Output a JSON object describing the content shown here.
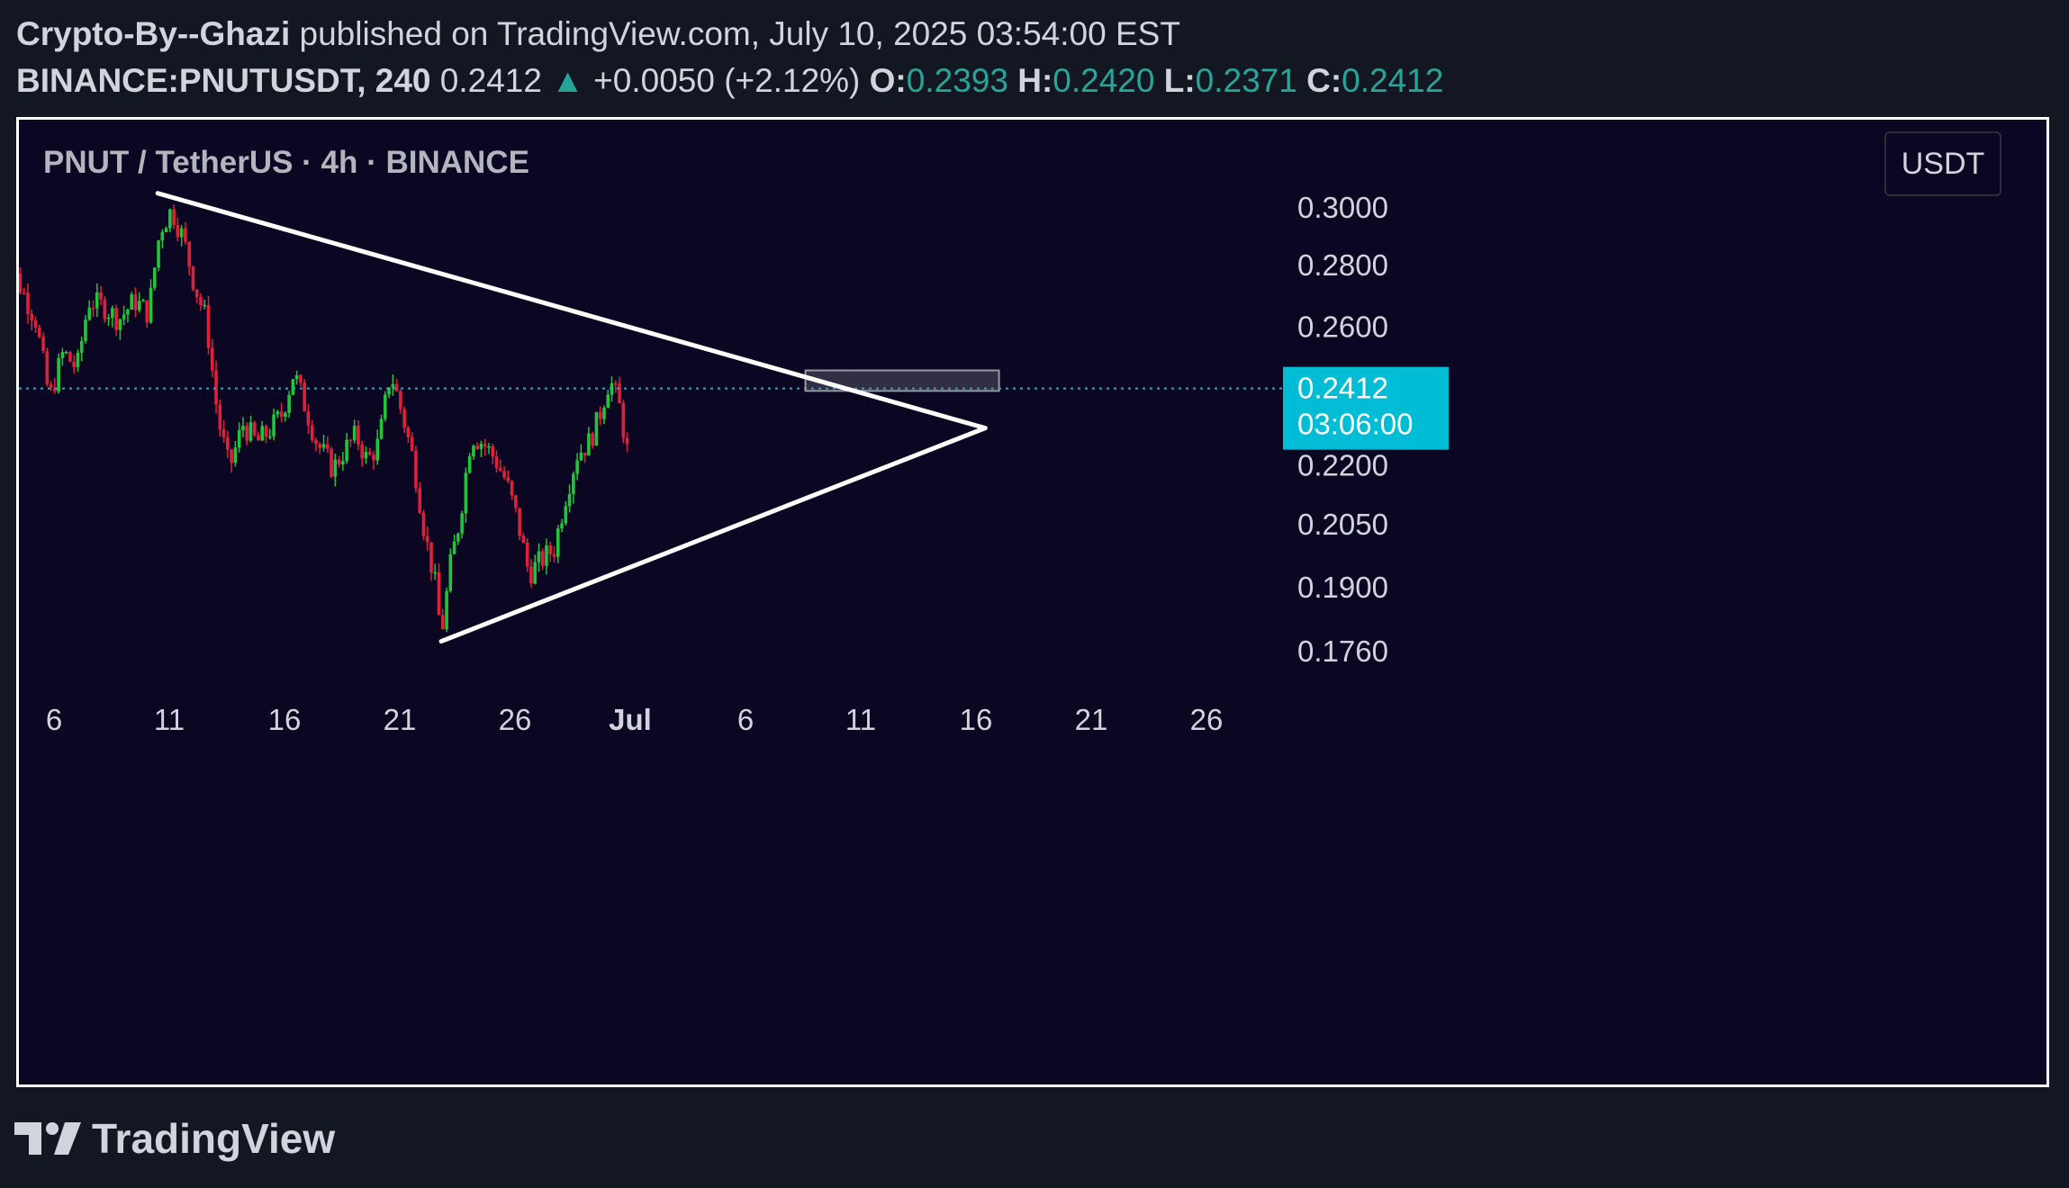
{
  "header": {
    "author": "Crypto-By--Ghazi",
    "published_text": " published on TradingView.com, July 10, 2025 03:54:00 EST",
    "symbol": "BINANCE:PNUTUSDT, 240",
    "last_price": "0.2412",
    "arrow": "▲",
    "change": "+0.0050 (+2.12%)",
    "open_label": "O:",
    "open_value": "0.2393",
    "high_label": "H:",
    "high_value": "0.2420",
    "low_label": "L:",
    "low_value": "0.2371",
    "close_label": "C:",
    "close_value": "0.2412"
  },
  "legend": {
    "title": "PNUT / TetherUS · 4h · BINANCE"
  },
  "currency_button": "USDT",
  "price_tag": {
    "price": "0.2412",
    "countdown": "03:06:00"
  },
  "footer": {
    "logo_text": "TradingView"
  },
  "colors": {
    "background": "#0b0722",
    "up": "#26a69a",
    "up_candle": "#22c43a",
    "down_candle": "#e0203a",
    "price_tag": "#00bcd4",
    "trendline": "#ffffff"
  },
  "chart_data": {
    "type": "candlestick",
    "title": "PNUT / TetherUS · 4h · BINANCE",
    "x_ticks": [
      "6",
      "11",
      "16",
      "21",
      "26",
      "Jul",
      "6",
      "11",
      "16",
      "21",
      "26"
    ],
    "y_ticks": [
      "0.3000",
      "0.2800",
      "0.2600",
      "0.2200",
      "0.2050",
      "0.1900",
      "0.1760"
    ],
    "y_tick_values": [
      0.3,
      0.28,
      0.26,
      0.22,
      0.205,
      0.19,
      0.176
    ],
    "scale": "log",
    "y_range": [
      0.168,
      0.315
    ],
    "x_range_days": [
      3.5,
      31.5
    ],
    "current_price": 0.2412,
    "close_series": [
      {
        "day": 3.7,
        "close": 0.287
      },
      {
        "day": 4.4,
        "close": 0.275
      },
      {
        "day": 5.2,
        "close": 0.262
      },
      {
        "day": 5.8,
        "close": 0.238
      },
      {
        "day": 6.4,
        "close": 0.252
      },
      {
        "day": 7.0,
        "close": 0.247
      },
      {
        "day": 7.5,
        "close": 0.268
      },
      {
        "day": 8.2,
        "close": 0.266
      },
      {
        "day": 8.8,
        "close": 0.262
      },
      {
        "day": 9.5,
        "close": 0.268
      },
      {
        "day": 10.1,
        "close": 0.264
      },
      {
        "day": 10.6,
        "close": 0.292
      },
      {
        "day": 11.1,
        "close": 0.299
      },
      {
        "day": 11.6,
        "close": 0.289
      },
      {
        "day": 12.1,
        "close": 0.273
      },
      {
        "day": 12.6,
        "close": 0.262
      },
      {
        "day": 13.1,
        "close": 0.233
      },
      {
        "day": 13.6,
        "close": 0.219
      },
      {
        "day": 14.2,
        "close": 0.231
      },
      {
        "day": 14.8,
        "close": 0.226
      },
      {
        "day": 15.3,
        "close": 0.229
      },
      {
        "day": 15.9,
        "close": 0.234
      },
      {
        "day": 16.4,
        "close": 0.246
      },
      {
        "day": 16.9,
        "close": 0.236
      },
      {
        "day": 17.4,
        "close": 0.226
      },
      {
        "day": 18.1,
        "close": 0.219
      },
      {
        "day": 18.6,
        "close": 0.224
      },
      {
        "day": 19.1,
        "close": 0.228
      },
      {
        "day": 19.6,
        "close": 0.221
      },
      {
        "day": 20.1,
        "close": 0.226
      },
      {
        "day": 20.6,
        "close": 0.246
      },
      {
        "day": 21.1,
        "close": 0.234
      },
      {
        "day": 21.6,
        "close": 0.221
      },
      {
        "day": 22.1,
        "close": 0.202
      },
      {
        "day": 22.5,
        "close": 0.192
      },
      {
        "day": 22.8,
        "close": 0.179
      },
      {
        "day": 23.2,
        "close": 0.195
      },
      {
        "day": 23.6,
        "close": 0.206
      },
      {
        "day": 24.1,
        "close": 0.228
      },
      {
        "day": 24.6,
        "close": 0.226
      },
      {
        "day": 25.1,
        "close": 0.222
      },
      {
        "day": 25.6,
        "close": 0.216
      },
      {
        "day": 26.1,
        "close": 0.206
      },
      {
        "day": 26.6,
        "close": 0.193
      },
      {
        "day": 27.1,
        "close": 0.196
      },
      {
        "day": 27.7,
        "close": 0.199
      },
      {
        "day": 28.2,
        "close": 0.212
      },
      {
        "day": 28.7,
        "close": 0.223
      },
      {
        "day": 29.2,
        "close": 0.226
      },
      {
        "day": 29.6,
        "close": 0.232
      },
      {
        "day": 30.1,
        "close": 0.244
      },
      {
        "day": 30.5,
        "close": 0.237
      },
      {
        "day": 31.0,
        "close": 0.219
      }
    ],
    "overlays": {
      "descending_trendline": [
        {
          "day": 10.5,
          "price": 0.305
        },
        {
          "day": 46.4,
          "price": 0.23
        }
      ],
      "ascending_trendline": [
        {
          "day": 22.8,
          "price": 0.178
        },
        {
          "day": 46.4,
          "price": 0.23
        }
      ],
      "resistance_zone": {
        "day_from": 38.6,
        "day_to": 47.0,
        "price_low": 0.2405,
        "price_high": 0.2465
      }
    }
  }
}
